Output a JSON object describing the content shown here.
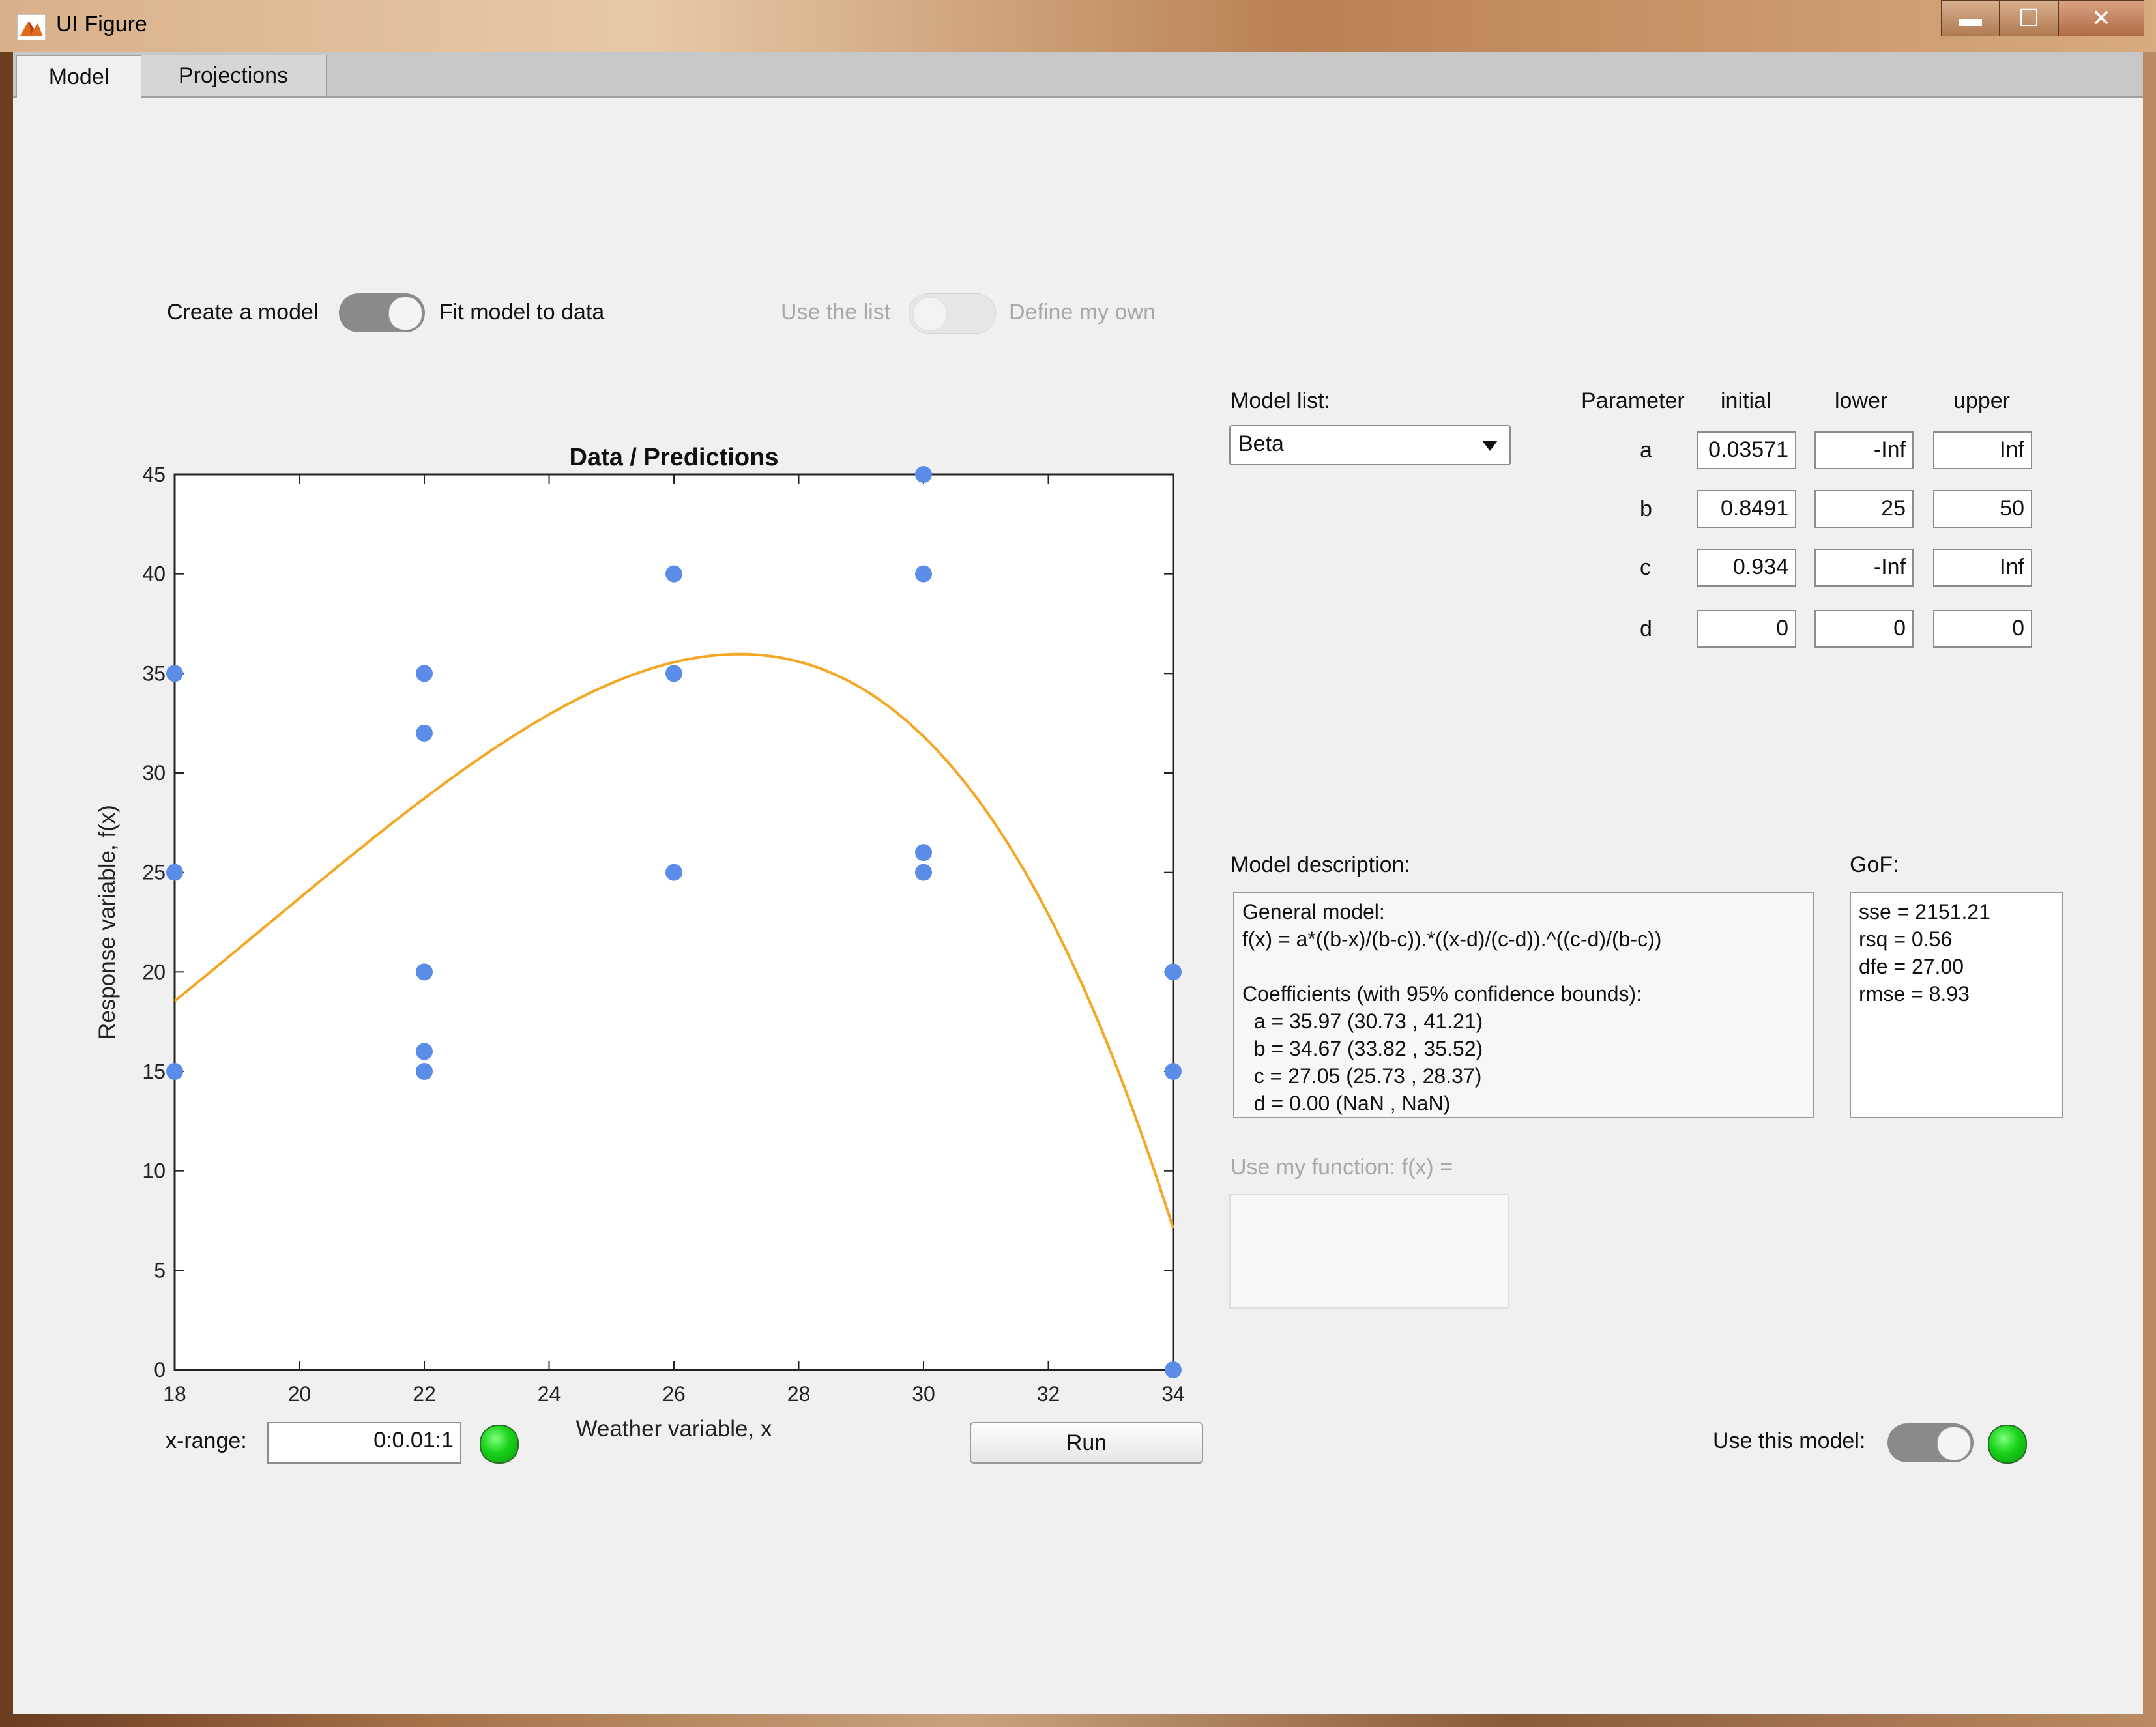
{
  "window": {
    "title": "UI Figure",
    "buttons": {
      "minimize": "▬",
      "maximize": "☐",
      "close": "✕"
    }
  },
  "tabs": [
    {
      "label": "Model",
      "active": true
    },
    {
      "label": "Projections",
      "active": false
    }
  ],
  "toggles": {
    "mode": {
      "left_label": "Create a model",
      "right_label": "Fit model to data",
      "state": "right"
    },
    "model_source": {
      "left_label": "Use the list",
      "right_label": "Define my own",
      "state": "left",
      "enabled": false
    },
    "use_model": {
      "label": "Use this model:",
      "state": "right"
    }
  },
  "model_list": {
    "label": "Model list:",
    "selected": "Beta"
  },
  "parameters": {
    "headers": [
      "Parameter",
      "initial",
      "lower",
      "upper"
    ],
    "rows": [
      {
        "name": "a",
        "initial": "0.03571",
        "lower": "-Inf",
        "upper": "Inf"
      },
      {
        "name": "b",
        "initial": "0.8491",
        "lower": "25",
        "upper": "50"
      },
      {
        "name": "c",
        "initial": "0.934",
        "lower": "-Inf",
        "upper": "Inf"
      },
      {
        "name": "d",
        "initial": "0",
        "lower": "0",
        "upper": "0"
      }
    ]
  },
  "model_description": {
    "label": "Model description:",
    "text": "General model:\nf(x) = a*((b-x)/(b-c)).*((x-d)/(c-d)).^((c-d)/(b-c))\n\nCoefficients (with 95% confidence bounds):\n  a = 35.97 (30.73 , 41.21)\n  b = 34.67 (33.82 , 35.52)\n  c = 27.05 (25.73 , 28.37)\n  d = 0.00 (NaN , NaN)"
  },
  "gof": {
    "label": "GoF:",
    "text": "sse = 2151.21\nrsq = 0.56\ndfe = 27.00\nrmse = 8.93"
  },
  "custom_function": {
    "label": "Use my function: f(x) =",
    "value": ""
  },
  "xrange": {
    "label": "x-range:",
    "value": "0:0.01:1",
    "status_color": "#19d219"
  },
  "run_button": {
    "label": "Run"
  },
  "colors": {
    "points": "#5b8de8",
    "curve": "#f5a623",
    "lamp": "#19d219"
  },
  "chart_data": {
    "type": "scatter",
    "title": "Data / Predictions",
    "xlabel": "Weather variable, x",
    "ylabel": "Response variable, f(x)",
    "xlim": [
      18,
      34
    ],
    "ylim": [
      0,
      45
    ],
    "xticks": [
      18,
      20,
      22,
      24,
      26,
      28,
      30,
      32,
      34
    ],
    "yticks": [
      0,
      5,
      10,
      15,
      20,
      25,
      30,
      35,
      40,
      45
    ],
    "grid": false,
    "series": [
      {
        "kind": "scatter",
        "points": [
          [
            18,
            35
          ],
          [
            18,
            25
          ],
          [
            18,
            15
          ],
          [
            22,
            35
          ],
          [
            22,
            32
          ],
          [
            22,
            20
          ],
          [
            22,
            16
          ],
          [
            22,
            15
          ],
          [
            26,
            40
          ],
          [
            26,
            35
          ],
          [
            26,
            25
          ],
          [
            30,
            45
          ],
          [
            30,
            40
          ],
          [
            30,
            26
          ],
          [
            30,
            25
          ],
          [
            34,
            20
          ],
          [
            34,
            15
          ],
          [
            34,
            0
          ]
        ]
      },
      {
        "kind": "line",
        "model": "beta",
        "coefficients": {
          "a": 35.97,
          "b": 34.67,
          "c": 27.05,
          "d": 0.0
        },
        "x_start": 18,
        "x_end": 34
      }
    ]
  }
}
